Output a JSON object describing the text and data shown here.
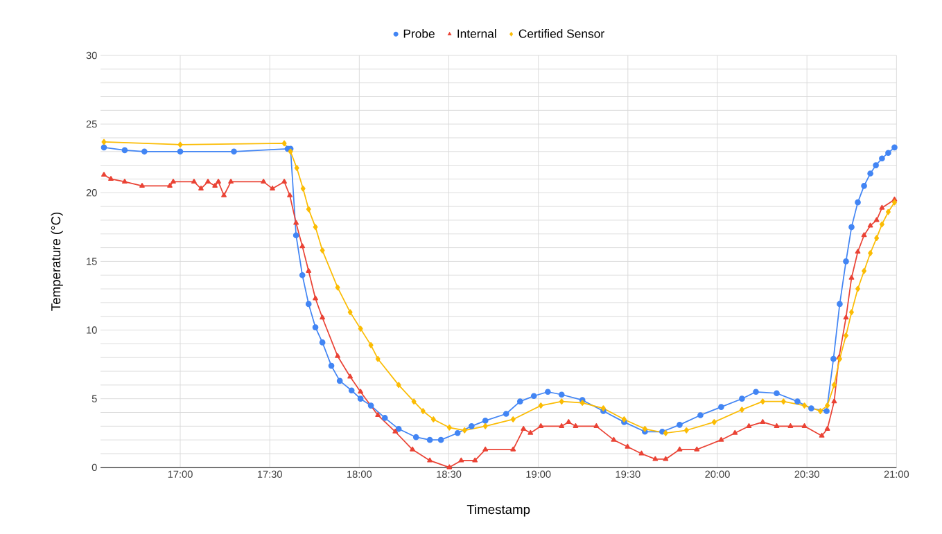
{
  "chart_data": {
    "type": "line",
    "xlabel": "Timestamp",
    "ylabel": "Temperature (°C)",
    "xlim": [
      16.555,
      21.0
    ],
    "ylim": [
      0,
      30
    ],
    "xticks": [
      {
        "value": 17,
        "label": "17:00"
      },
      {
        "value": 17.5,
        "label": "17:30"
      },
      {
        "value": 18,
        "label": "18:00"
      },
      {
        "value": 18.5,
        "label": "18:30"
      },
      {
        "value": 19,
        "label": "19:00"
      },
      {
        "value": 19.5,
        "label": "19:30"
      },
      {
        "value": 20,
        "label": "20:00"
      },
      {
        "value": 20.5,
        "label": "20:30"
      },
      {
        "value": 21,
        "label": "21:00"
      }
    ],
    "yticks": [
      0,
      {
        "value": 1,
        "label": null
      },
      {
        "value": 2,
        "label": null
      },
      {
        "value": 3,
        "label": null
      },
      {
        "value": 4,
        "label": null
      },
      5,
      {
        "value": 6,
        "label": null
      },
      {
        "value": 7,
        "label": null
      },
      {
        "value": 8,
        "label": null
      },
      {
        "value": 9,
        "label": null
      },
      10,
      {
        "value": 11,
        "label": null
      },
      {
        "value": 12,
        "label": null
      },
      {
        "value": 13,
        "label": null
      },
      {
        "value": 14,
        "label": null
      },
      15,
      {
        "value": 16,
        "label": null
      },
      {
        "value": 17,
        "label": null
      },
      {
        "value": 18,
        "label": null
      },
      {
        "value": 19,
        "label": null
      },
      20,
      {
        "value": 21,
        "label": null
      },
      {
        "value": 22,
        "label": null
      },
      {
        "value": 23,
        "label": null
      },
      {
        "value": 24,
        "label": null
      },
      25,
      {
        "value": 26,
        "label": null
      },
      {
        "value": 27,
        "label": null
      },
      {
        "value": 28,
        "label": null
      },
      {
        "value": 29,
        "label": null
      },
      30
    ],
    "grid": true,
    "legend": "top",
    "line_style": "solid",
    "series": [
      {
        "name": "Probe",
        "color": "#4285f4",
        "marker": "circle",
        "x": [
          16.574,
          16.69,
          16.8,
          17.0,
          17.3,
          17.6,
          17.616,
          17.647,
          17.682,
          17.717,
          17.755,
          17.794,
          17.844,
          17.891,
          17.957,
          18.007,
          18.065,
          18.143,
          18.22,
          18.317,
          18.394,
          18.456,
          18.549,
          18.627,
          18.704,
          18.82,
          18.898,
          18.975,
          19.053,
          19.13,
          19.246,
          19.363,
          19.479,
          19.595,
          19.692,
          19.789,
          19.905,
          20.021,
          20.137,
          20.215,
          20.331,
          20.447,
          20.524,
          20.61,
          20.648,
          20.683,
          20.718,
          20.749,
          20.784,
          20.819,
          20.854,
          20.885,
          20.919,
          20.954,
          20.989
        ],
        "values": [
          23.3,
          23.1,
          23.0,
          23.0,
          23.0,
          23.2,
          23.2,
          16.9,
          14.0,
          11.9,
          10.2,
          9.1,
          7.4,
          6.3,
          5.6,
          5.0,
          4.5,
          3.6,
          2.8,
          2.2,
          2.0,
          2.0,
          2.5,
          3.0,
          3.4,
          3.9,
          4.8,
          5.2,
          5.5,
          5.3,
          4.9,
          4.1,
          3.3,
          2.6,
          2.6,
          3.1,
          3.8,
          4.4,
          5.0,
          5.5,
          5.4,
          4.8,
          4.3,
          4.1,
          7.9,
          11.9,
          15.0,
          17.5,
          19.3,
          20.5,
          21.4,
          22.0,
          22.5,
          22.9,
          23.3
        ]
      },
      {
        "name": "Internal",
        "color": "#ea4335",
        "marker": "triangle",
        "x": [
          16.574,
          16.613,
          16.69,
          16.787,
          16.942,
          16.961,
          17.077,
          17.116,
          17.155,
          17.194,
          17.213,
          17.244,
          17.283,
          17.465,
          17.515,
          17.581,
          17.612,
          17.647,
          17.682,
          17.717,
          17.755,
          17.794,
          17.879,
          17.949,
          18.007,
          18.104,
          18.201,
          18.297,
          18.394,
          18.503,
          18.569,
          18.646,
          18.704,
          18.859,
          18.917,
          18.956,
          19.014,
          19.13,
          19.169,
          19.208,
          19.324,
          19.421,
          19.498,
          19.576,
          19.653,
          19.711,
          19.789,
          19.885,
          20.021,
          20.098,
          20.176,
          20.253,
          20.331,
          20.408,
          20.486,
          20.583,
          20.614,
          20.652,
          20.679,
          20.718,
          20.749,
          20.784,
          20.819,
          20.854,
          20.889,
          20.919,
          20.989
        ],
        "values": [
          21.3,
          21.0,
          20.8,
          20.5,
          20.5,
          20.8,
          20.8,
          20.3,
          20.8,
          20.5,
          20.8,
          19.8,
          20.8,
          20.8,
          20.3,
          20.8,
          19.8,
          17.8,
          16.1,
          14.3,
          12.3,
          10.9,
          8.1,
          6.6,
          5.5,
          3.8,
          2.6,
          1.3,
          0.5,
          0.0,
          0.5,
          0.5,
          1.3,
          1.3,
          2.8,
          2.5,
          3.0,
          3.0,
          3.3,
          3.0,
          3.0,
          2.0,
          1.5,
          1.0,
          0.6,
          0.6,
          1.3,
          1.3,
          2.0,
          2.5,
          3.0,
          3.3,
          3.0,
          3.0,
          3.0,
          2.3,
          2.8,
          4.8,
          8.0,
          10.9,
          13.8,
          15.7,
          16.9,
          17.6,
          18.0,
          18.9,
          19.5
        ]
      },
      {
        "name": "Certified Sensor",
        "color": "#fbbc04",
        "marker": "diamond",
        "x": [
          16.574,
          17.0,
          17.581,
          17.616,
          17.651,
          17.686,
          17.717,
          17.755,
          17.794,
          17.879,
          17.949,
          18.007,
          18.065,
          18.104,
          18.22,
          18.305,
          18.356,
          18.414,
          18.503,
          18.588,
          18.704,
          18.859,
          19.014,
          19.13,
          19.246,
          19.363,
          19.479,
          19.595,
          19.711,
          19.827,
          19.982,
          20.137,
          20.253,
          20.369,
          20.486,
          20.575,
          20.614,
          20.652,
          20.683,
          20.718,
          20.749,
          20.784,
          20.819,
          20.854,
          20.889,
          20.919,
          20.954,
          20.989
        ],
        "values": [
          23.7,
          23.5,
          23.6,
          23.0,
          21.8,
          20.3,
          18.8,
          17.5,
          15.8,
          13.1,
          11.3,
          10.1,
          8.9,
          7.9,
          6.0,
          4.8,
          4.1,
          3.5,
          2.9,
          2.7,
          3.0,
          3.5,
          4.5,
          4.8,
          4.7,
          4.3,
          3.5,
          2.8,
          2.5,
          2.7,
          3.3,
          4.2,
          4.8,
          4.8,
          4.5,
          4.1,
          4.5,
          6.0,
          7.9,
          9.6,
          11.3,
          13.0,
          14.3,
          15.6,
          16.7,
          17.7,
          18.6,
          19.3
        ]
      }
    ]
  }
}
